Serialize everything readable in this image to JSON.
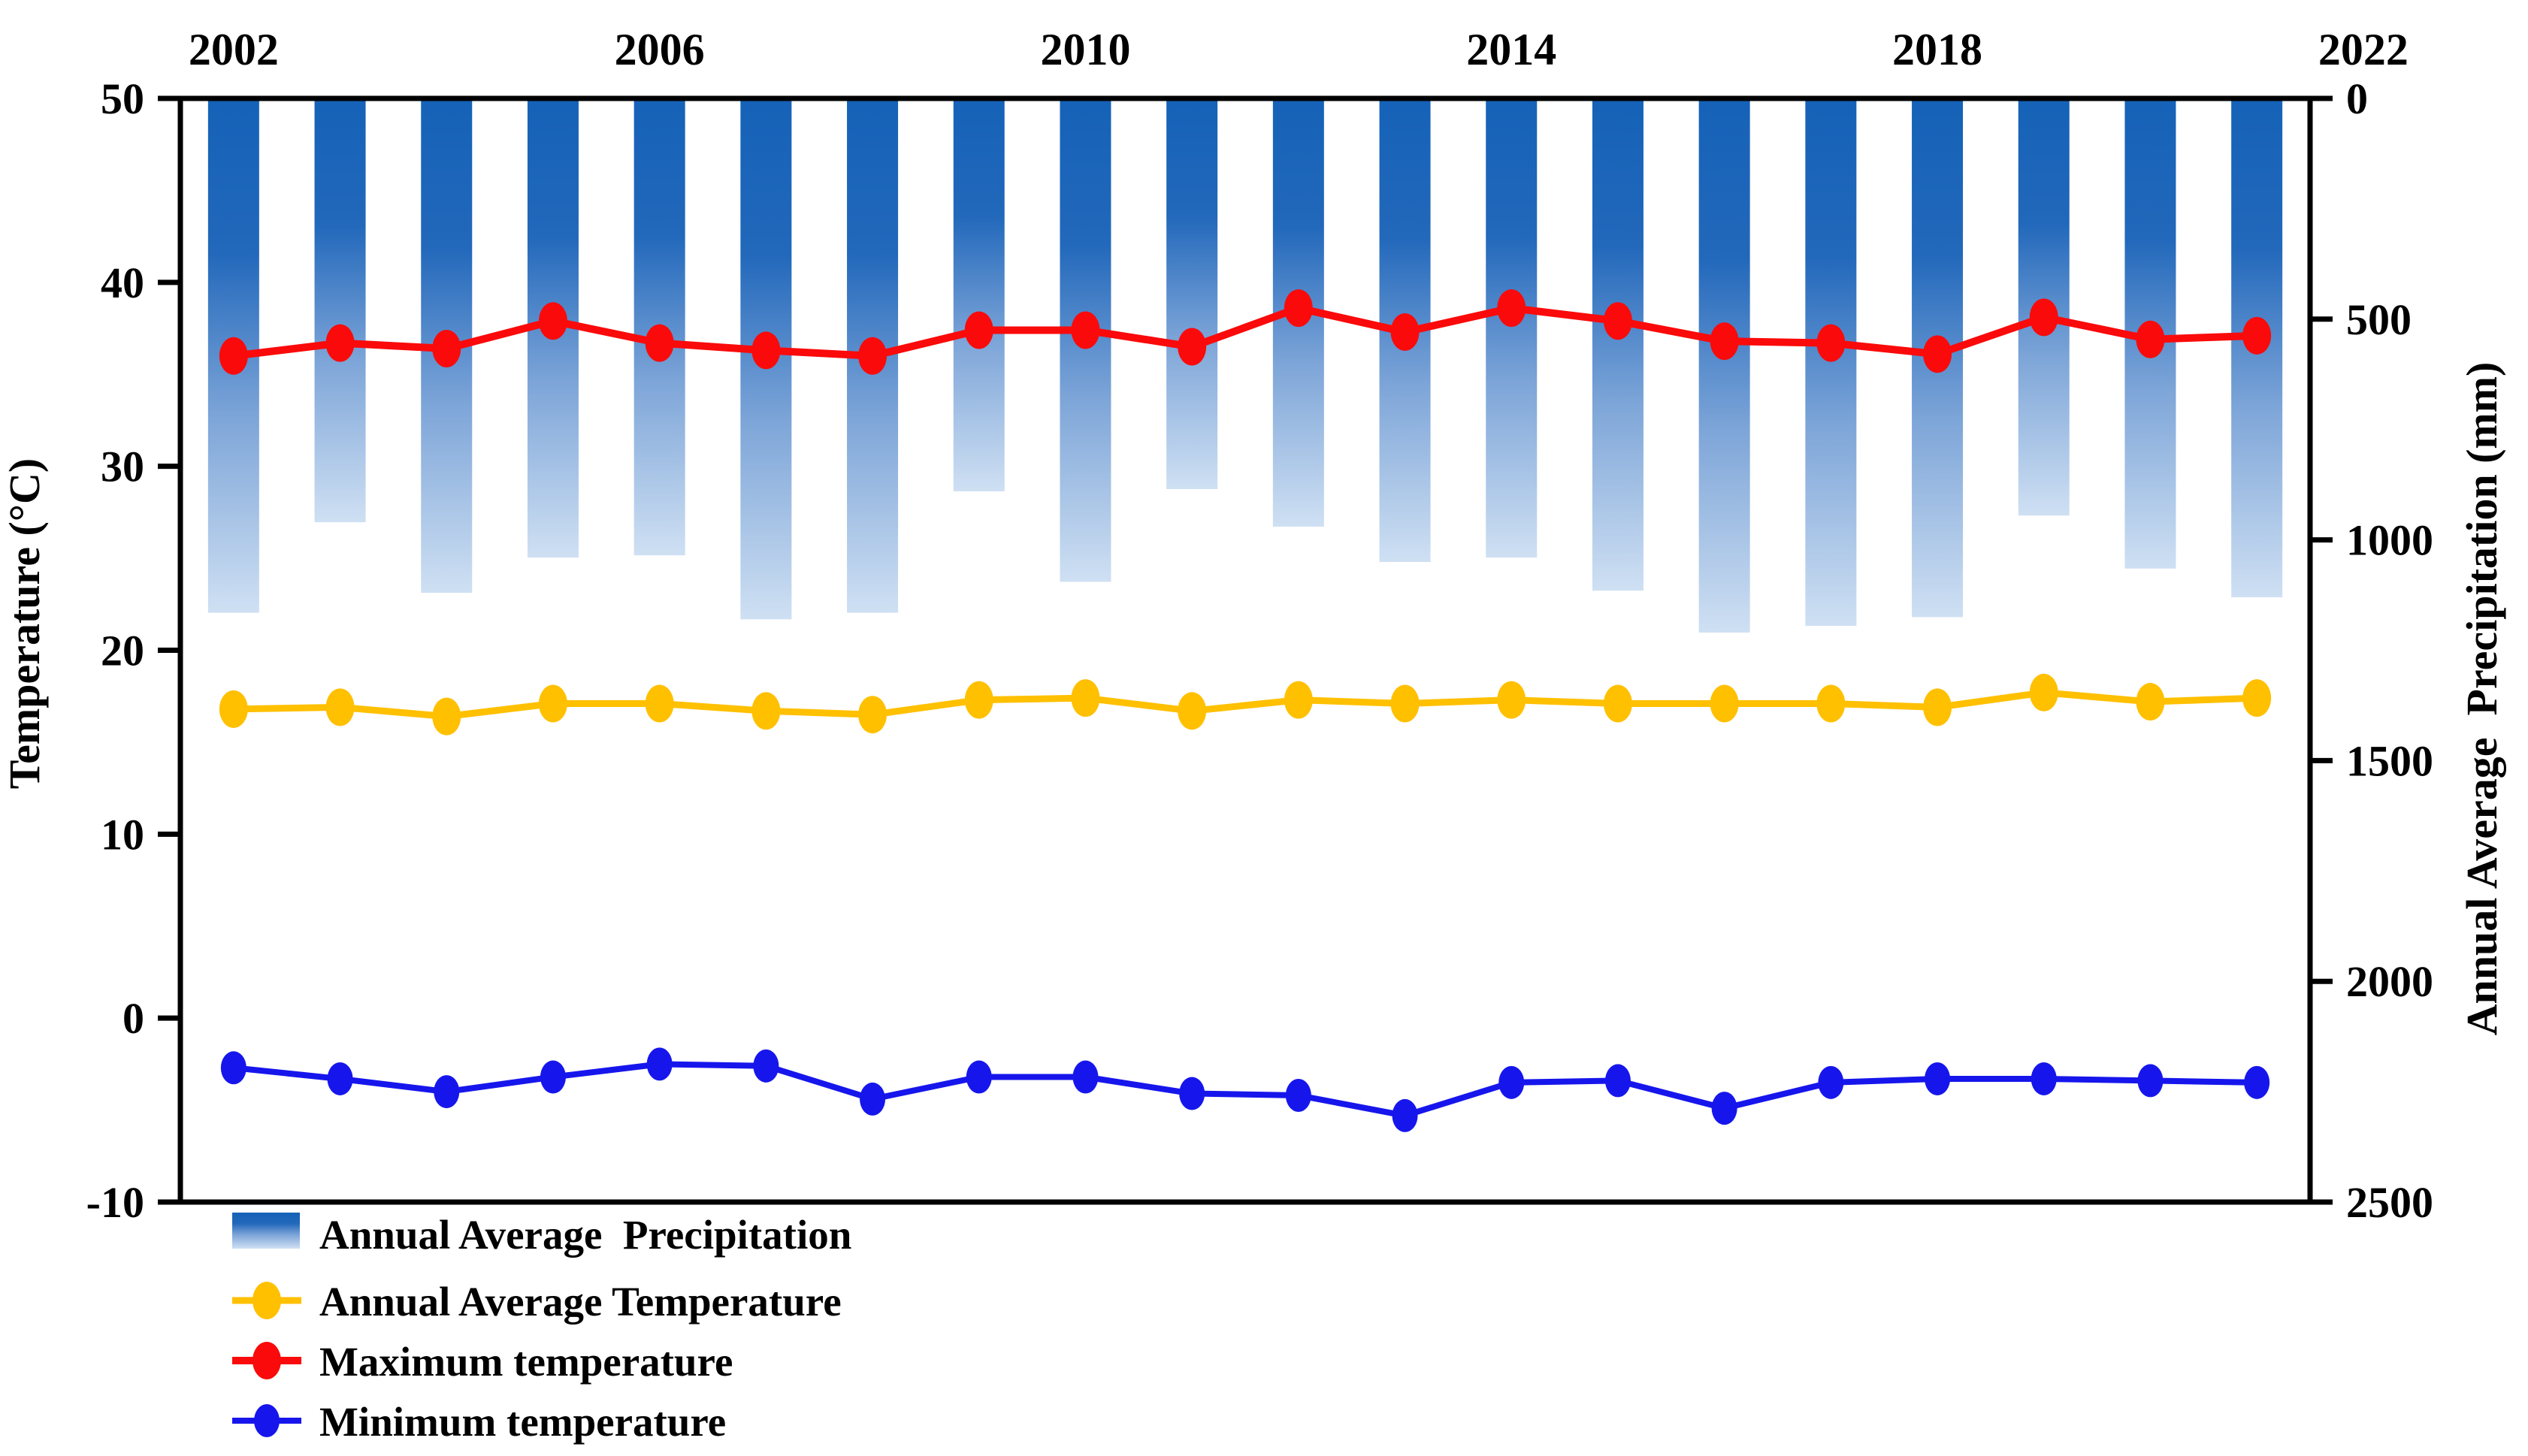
{
  "chart_data": {
    "type": "bar",
    "subtype": "bar-line-combo",
    "x": [
      2002,
      2003,
      2004,
      2005,
      2006,
      2007,
      2008,
      2009,
      2010,
      2011,
      2012,
      2013,
      2014,
      2015,
      2016,
      2017,
      2018,
      2019,
      2020,
      2021
    ],
    "x_axis": {
      "position": "top",
      "tick_labels": [
        "2002",
        "2006",
        "2010",
        "2014",
        "2018",
        "2022"
      ],
      "tick_years": [
        2002,
        2006,
        2010,
        2014,
        2018,
        2022
      ],
      "range": [
        2002,
        2022
      ]
    },
    "left_axis": {
      "label": "Temperature (°C)",
      "ticks": [
        50,
        40,
        30,
        20,
        10,
        0,
        -10
      ],
      "range": [
        -10,
        50
      ]
    },
    "right_axis": {
      "label": "Annual Average  Precipitation (mm)",
      "ticks": [
        0,
        500,
        1000,
        1500,
        2000,
        2500
      ],
      "range": [
        0,
        2500
      ],
      "inverted": true
    },
    "series": [
      {
        "name": "Annual Average  Precipitation",
        "type": "bar",
        "axis": "right",
        "color_top": "#1562B8",
        "color_mid": "#6D9BD2",
        "color_bottom": "#CFE0F3",
        "values": [
          1165,
          960,
          1120,
          1040,
          1035,
          1180,
          1165,
          890,
          1095,
          885,
          970,
          1050,
          1040,
          1115,
          1210,
          1195,
          1175,
          945,
          1065,
          1130
        ]
      },
      {
        "name": "Annual Average Temperature",
        "type": "line",
        "axis": "left",
        "color": "#FFC000",
        "values": [
          16.8,
          16.9,
          16.4,
          17.1,
          17.1,
          16.7,
          16.5,
          17.3,
          17.4,
          16.7,
          17.3,
          17.1,
          17.3,
          17.1,
          17.1,
          17.1,
          16.9,
          17.7,
          17.2,
          17.4
        ]
      },
      {
        "name": "Maximum temperature",
        "type": "line",
        "axis": "left",
        "color": "#FA0A0A",
        "values": [
          36.0,
          36.7,
          36.4,
          37.9,
          36.7,
          36.3,
          36.0,
          37.4,
          37.4,
          36.5,
          38.6,
          37.3,
          38.6,
          37.9,
          36.8,
          36.7,
          36.1,
          38.1,
          36.9,
          37.1
        ]
      },
      {
        "name": "Minimum temperature",
        "type": "line",
        "axis": "left",
        "color": "#1616EC",
        "values": [
          -2.7,
          -3.3,
          -4.0,
          -3.2,
          -2.5,
          -2.6,
          -4.4,
          -3.2,
          -3.2,
          -4.1,
          -4.2,
          -5.3,
          -3.5,
          -3.4,
          -4.9,
          -3.5,
          -3.3,
          -3.3,
          -3.4,
          -3.5
        ]
      }
    ],
    "legend": [
      {
        "label": "Annual Average  Precipitation",
        "marker": "gradient-bar-swatch"
      },
      {
        "label": "Annual Average Temperature",
        "marker": "line-dot",
        "color": "#FFC000"
      },
      {
        "label": "Maximum temperature",
        "marker": "line-dot",
        "color": "#FA0A0A"
      },
      {
        "label": "Minimum temperature",
        "marker": "line-dot",
        "color": "#1616EC"
      }
    ],
    "axis_color": "#000000",
    "grid": false,
    "legend_position": "bottom-left"
  }
}
